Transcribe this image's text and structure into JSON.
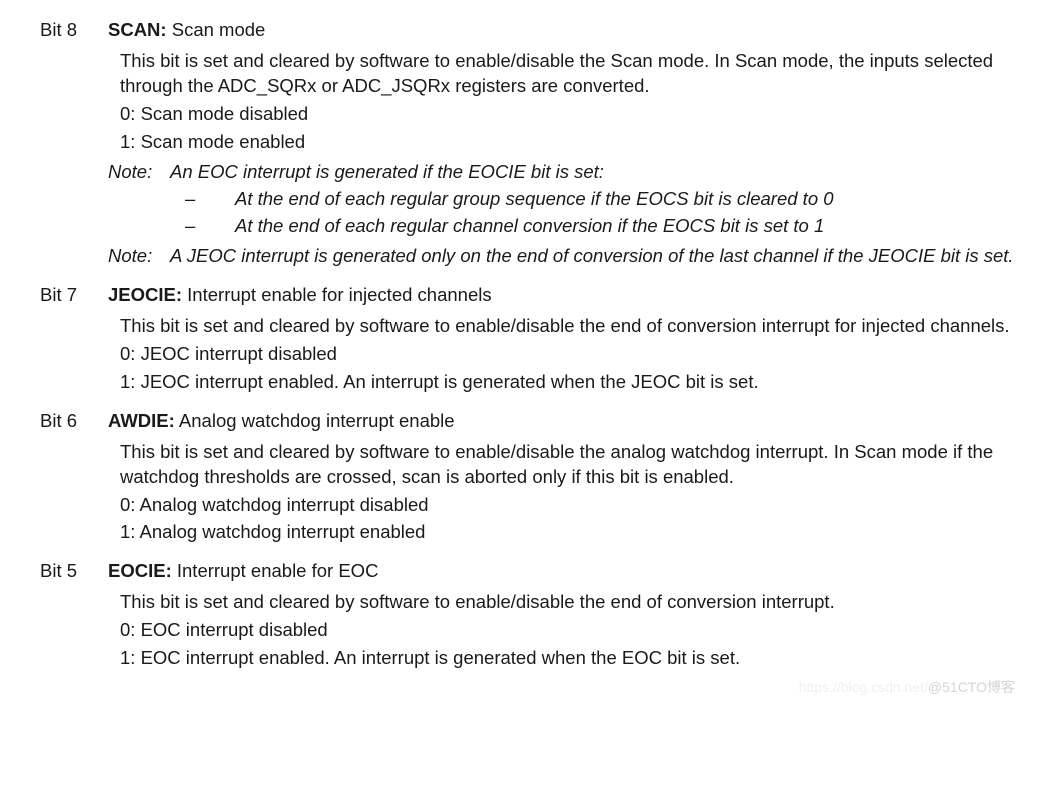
{
  "bits": [
    {
      "num": "Bit 8",
      "name": "SCAN:",
      "title": " Scan mode",
      "desc": [
        "This bit is set and cleared by software to enable/disable the Scan mode. In Scan mode, the inputs selected through the ADC_SQRx or ADC_JSQRx registers are converted.",
        "0: Scan mode disabled",
        "1: Scan mode enabled"
      ],
      "notes": [
        {
          "label": "Note:",
          "text": "An EOC interrupt is generated if the EOCIE bit is set:",
          "bullets": [
            "At the end of each regular group sequence if the EOCS bit is cleared to 0",
            "At the end of each regular channel conversion if the EOCS bit is set to 1"
          ]
        },
        {
          "label": "Note:",
          "text": "A JEOC interrupt is generated only on the end of conversion of the last channel if the JEOCIE bit is set.",
          "bullets": []
        }
      ]
    },
    {
      "num": "Bit 7",
      "name": "JEOCIE:",
      "title": " Interrupt enable for injected channels",
      "desc": [
        "This bit is set and cleared by software to enable/disable the end of conversion interrupt for injected channels.",
        "0: JEOC interrupt disabled",
        "1: JEOC interrupt enabled. An interrupt is generated when the JEOC bit is set."
      ],
      "notes": []
    },
    {
      "num": "Bit 6",
      "name": "AWDIE:",
      "title": " Analog watchdog interrupt enable",
      "desc": [
        "This bit is set and cleared by software to enable/disable the analog watchdog interrupt. In Scan mode if the watchdog thresholds are crossed, scan is aborted only if this bit is enabled.",
        "0: Analog watchdog interrupt disabled",
        "1: Analog watchdog interrupt enabled"
      ],
      "notes": []
    },
    {
      "num": "Bit 5",
      "name": "EOCIE:",
      "title": " Interrupt enable for EOC",
      "desc": [
        "This bit is set and cleared by software to enable/disable the end of conversion interrupt.",
        "0: EOC interrupt disabled",
        "1: EOC interrupt enabled. An interrupt is generated when the EOC bit is set."
      ],
      "notes": []
    }
  ],
  "watermark_left": "https://blog.csdn.net/",
  "watermark_right": "@51CTO博客"
}
